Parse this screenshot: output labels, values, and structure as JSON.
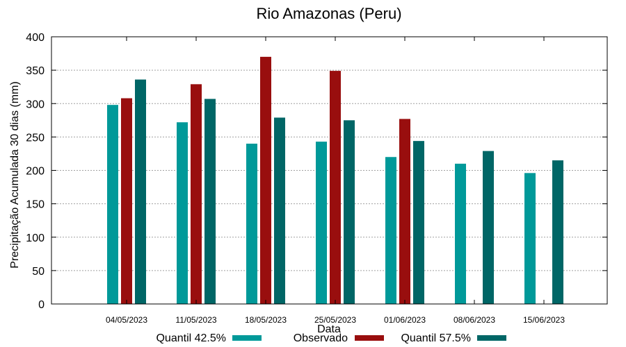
{
  "chart_data": {
    "type": "bar",
    "title": "Rio Amazonas (Peru)",
    "xlabel": "Data",
    "ylabel": "Precipitação Acumulada 30 dias (mm)",
    "ylim": [
      0,
      400
    ],
    "yticks": [
      0,
      50,
      100,
      150,
      200,
      250,
      300,
      350,
      400
    ],
    "grid": true,
    "legend_position": "bottom",
    "categories": [
      "04/05/2023",
      "11/05/2023",
      "18/05/2023",
      "25/05/2023",
      "01/06/2023",
      "08/06/2023",
      "15/06/2023"
    ],
    "series": [
      {
        "name": "Quantil 42.5%",
        "color": "#009999",
        "values": [
          298,
          272,
          240,
          243,
          220,
          210,
          196
        ]
      },
      {
        "name": "Observado",
        "color": "#990e0e",
        "values": [
          308,
          329,
          370,
          349,
          277,
          null,
          null
        ]
      },
      {
        "name": "Quantil 57.5%",
        "color": "#006666",
        "values": [
          336,
          307,
          279,
          275,
          244,
          229,
          215
        ]
      }
    ]
  }
}
